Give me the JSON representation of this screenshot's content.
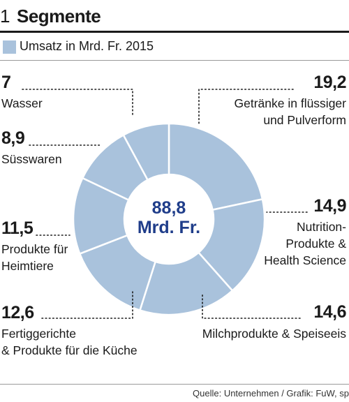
{
  "header": {
    "number": "1",
    "title": "Segmente"
  },
  "legend": {
    "label": "Umsatz in Mrd. Fr. 2015",
    "color": "#a9c2dc"
  },
  "center": {
    "line1": "88,8",
    "line2": "Mrd. Fr."
  },
  "source": "Quelle: Unternehmen / Grafik: FuW, sp",
  "colors": {
    "slice": "#a9c2dc",
    "slice_stroke": "#ffffff",
    "center_text": "#1f3d8a",
    "leader": "#1a1a1a"
  },
  "chart_data": {
    "type": "pie",
    "title": "Segmente",
    "subtitle": "Umsatz in Mrd. Fr. 2015",
    "unit": "Mrd. Fr.",
    "total": 88.8,
    "slices": [
      {
        "value": 19.2,
        "value_label": "19,2",
        "label_lines": [
          "Getränke in flüssiger",
          "und Pulverform"
        ]
      },
      {
        "value": 14.9,
        "value_label": "14,9",
        "label_lines": [
          "Nutrition-",
          "Produkte &",
          "Health Science"
        ]
      },
      {
        "value": 14.6,
        "value_label": "14,6",
        "label_lines": [
          "Milchprodukte & Speiseeis"
        ]
      },
      {
        "value": 12.6,
        "value_label": "12,6",
        "label_lines": [
          "Fertiggerichte",
          "& Produkte für die Küche"
        ]
      },
      {
        "value": 11.5,
        "value_label": "11,5",
        "label_lines": [
          "Produkte für",
          "Heimtiere"
        ]
      },
      {
        "value": 8.9,
        "value_label": "8,9",
        "label_lines": [
          "Süsswaren"
        ]
      },
      {
        "value": 7,
        "value_label": "7",
        "label_lines": [
          "Wasser"
        ]
      }
    ]
  }
}
